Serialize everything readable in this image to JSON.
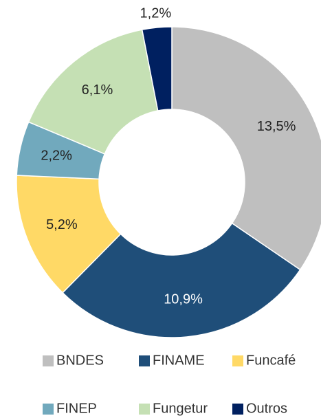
{
  "chart_data": {
    "type": "donut",
    "categories": [
      "BNDES",
      "FINAME",
      "Funcafé",
      "FINEP",
      "Fungetur",
      "Outros"
    ],
    "values": [
      13.5,
      10.9,
      5.2,
      2.2,
      6.1,
      1.2
    ],
    "value_labels": [
      "13,5%",
      "10,9%",
      "5,2%",
      "2,2%",
      "6,1%",
      "1,2%"
    ],
    "colors": [
      "#bfbfbf",
      "#1f4e79",
      "#ffd966",
      "#71a9bd",
      "#c5e0b4",
      "#002060"
    ],
    "legend": "bottom"
  }
}
